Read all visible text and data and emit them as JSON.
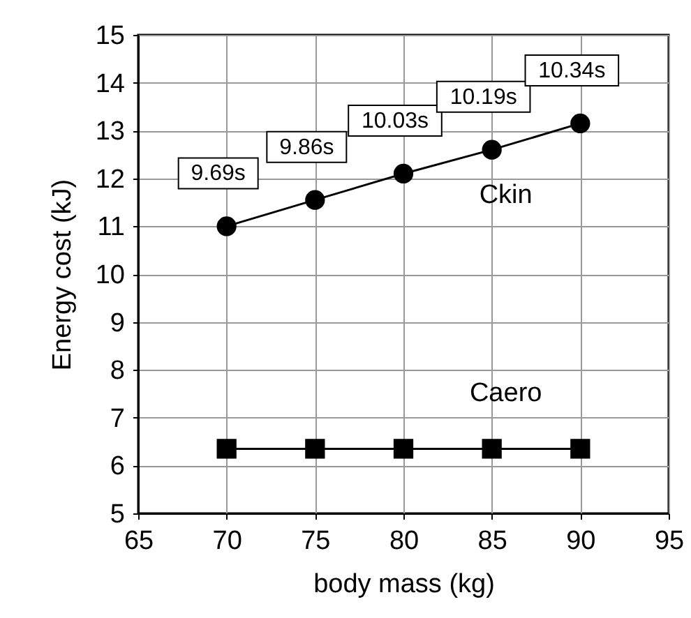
{
  "chart_data": {
    "type": "line",
    "x": [
      70,
      75,
      80,
      85,
      90
    ],
    "series": [
      {
        "name": "Ckin",
        "color": "#000000",
        "marker": "circle",
        "values": [
          11.0,
          11.55,
          12.1,
          12.6,
          13.15
        ]
      },
      {
        "name": "Caero",
        "color": "#000000",
        "marker": "square",
        "values": [
          6.35,
          6.35,
          6.35,
          6.35,
          6.35
        ]
      }
    ],
    "xlabel": "body mass (kg)",
    "ylabel": "Energy cost (kJ)",
    "xlim": [
      65,
      95
    ],
    "xticks": [
      65,
      70,
      75,
      80,
      85,
      90,
      95
    ],
    "ylim": [
      5,
      15
    ],
    "yticks": [
      5,
      6,
      7,
      8,
      9,
      10,
      11,
      12,
      13,
      14,
      15
    ],
    "grid": true,
    "annotations": [
      {
        "text": "9.69s",
        "x": 70,
        "y": 11.0
      },
      {
        "text": "9.86s",
        "x": 75,
        "y": 11.55
      },
      {
        "text": "10.03s",
        "x": 80,
        "y": 12.1
      },
      {
        "text": "10.19s",
        "x": 85,
        "y": 12.6
      },
      {
        "text": "10.34s",
        "x": 90,
        "y": 13.15
      }
    ]
  }
}
